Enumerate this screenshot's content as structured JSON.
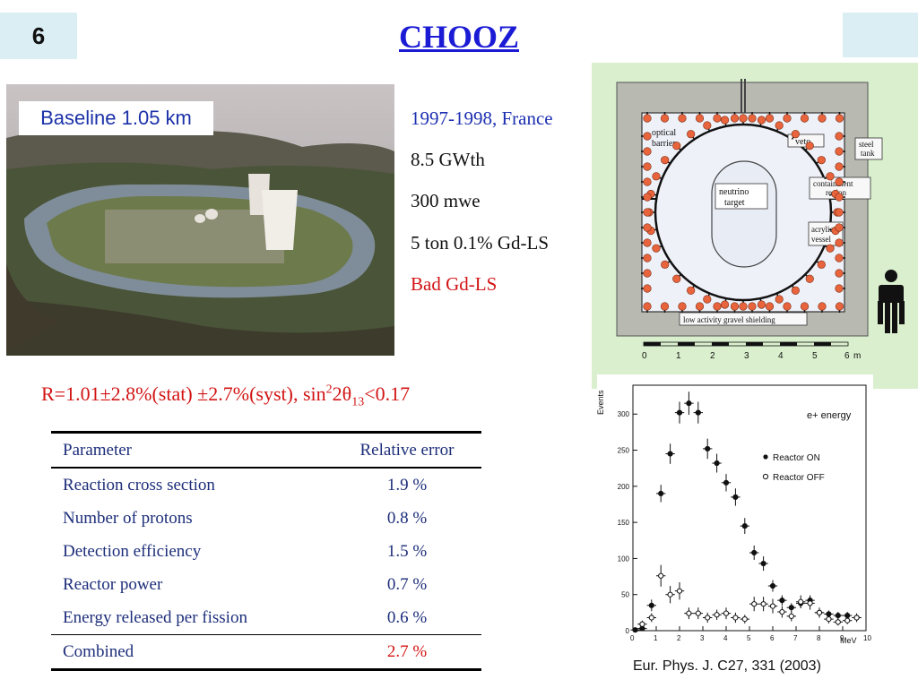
{
  "slide": {
    "number": "6",
    "title": "CHOOZ"
  },
  "photo": {
    "label": "Baseline 1.05 km"
  },
  "specs": [
    {
      "text": "1997-1998, France",
      "color": "#1c2fb0"
    },
    {
      "text": "8.5 GWth",
      "color": "#111111"
    },
    {
      "text": "300 mwe",
      "color": "#111111"
    },
    {
      "text": "5 ton 0.1% Gd-LS",
      "color": "#111111"
    },
    {
      "text": "Bad Gd-LS",
      "color": "#d21414"
    }
  ],
  "detector": {
    "labels": {
      "optical_barrier_1": "optical",
      "optical_barrier_2": "barrier",
      "veto": "veto",
      "steel_tank_1": "steel",
      "steel_tank_2": "tank",
      "neutrino_target_1": "neutrino",
      "neutrino_target_2": "target",
      "containment_1": "containment",
      "containment_2": "region",
      "acrylic_1": "acrylic",
      "acrylic_2": "vessel",
      "gravel": "low activity gravel shielding"
    },
    "scale_ticks": [
      "0",
      "1",
      "2",
      "3",
      "4",
      "5",
      "6"
    ],
    "scale_unit": "m"
  },
  "result": {
    "prefix": "R=1.01±2.8%(stat) ±2.7%(syst),  sin",
    "sup": "2",
    "mid": "2θ",
    "sub": "13",
    "suffix": "<0.17"
  },
  "table": {
    "header": {
      "param": "Parameter",
      "err": "Relative error"
    },
    "rows": [
      {
        "param": "Reaction cross section",
        "err": "1.9 %"
      },
      {
        "param": "Number of protons",
        "err": "0.8 %"
      },
      {
        "param": "Detection efficiency",
        "err": "1.5 %"
      },
      {
        "param": "Reactor power",
        "err": "0.7 %"
      },
      {
        "param": "Energy released per fission",
        "err": "0.6 %"
      }
    ],
    "combined": {
      "param": "Combined",
      "err": "2.7 %"
    }
  },
  "chart_data": {
    "type": "scatter",
    "title": "e+ energy",
    "xlabel": "MeV",
    "ylabel": "Events",
    "xlim": [
      0,
      10
    ],
    "ylim": [
      0,
      340
    ],
    "x_ticks": [
      "0",
      "1",
      "2",
      "3",
      "4",
      "5",
      "6",
      "7",
      "8",
      "9",
      "10"
    ],
    "y_ticks": [
      "0",
      "50",
      "100",
      "150",
      "200",
      "250",
      "300"
    ],
    "legend": "right",
    "series": [
      {
        "name": "Reactor ON",
        "marker": "filled",
        "x": [
          0.1,
          0.4,
          0.8,
          1.2,
          1.6,
          2.0,
          2.4,
          2.8,
          3.2,
          3.6,
          4.0,
          4.4,
          4.8,
          5.2,
          5.6,
          6.0,
          6.4,
          6.8,
          7.2,
          7.6,
          8.0,
          8.4,
          8.8,
          9.2,
          9.6
        ],
        "y": [
          1,
          3,
          35,
          190,
          245,
          302,
          315,
          302,
          252,
          232,
          205,
          185,
          145,
          108,
          93,
          62,
          42,
          32,
          38,
          42,
          25,
          23,
          21,
          21,
          18
        ],
        "err": [
          2,
          5,
          8,
          12,
          14,
          15,
          16,
          15,
          14,
          13,
          12,
          12,
          11,
          10,
          10,
          8,
          7,
          6,
          6,
          7,
          5,
          5,
          5,
          5,
          4
        ]
      },
      {
        "name": "Reactor OFF",
        "marker": "open",
        "x": [
          0.4,
          0.8,
          1.2,
          1.6,
          2.0,
          2.4,
          2.8,
          3.2,
          3.6,
          4.0,
          4.4,
          4.8,
          5.2,
          5.6,
          6.0,
          6.4,
          6.8,
          7.2,
          7.6,
          8.0,
          8.4,
          8.8,
          9.2,
          9.6
        ],
        "y": [
          9,
          18,
          76,
          50,
          55,
          24,
          24,
          18,
          22,
          24,
          18,
          16,
          37,
          37,
          34,
          26,
          20,
          40,
          38,
          25,
          16,
          12,
          14,
          18
        ],
        "err": [
          5,
          6,
          15,
          12,
          12,
          8,
          8,
          7,
          7,
          8,
          7,
          6,
          10,
          10,
          10,
          8,
          7,
          9,
          9,
          7,
          6,
          5,
          5,
          6
        ]
      }
    ]
  },
  "citation": "Eur. Phys. J. C27, 331 (2003)"
}
